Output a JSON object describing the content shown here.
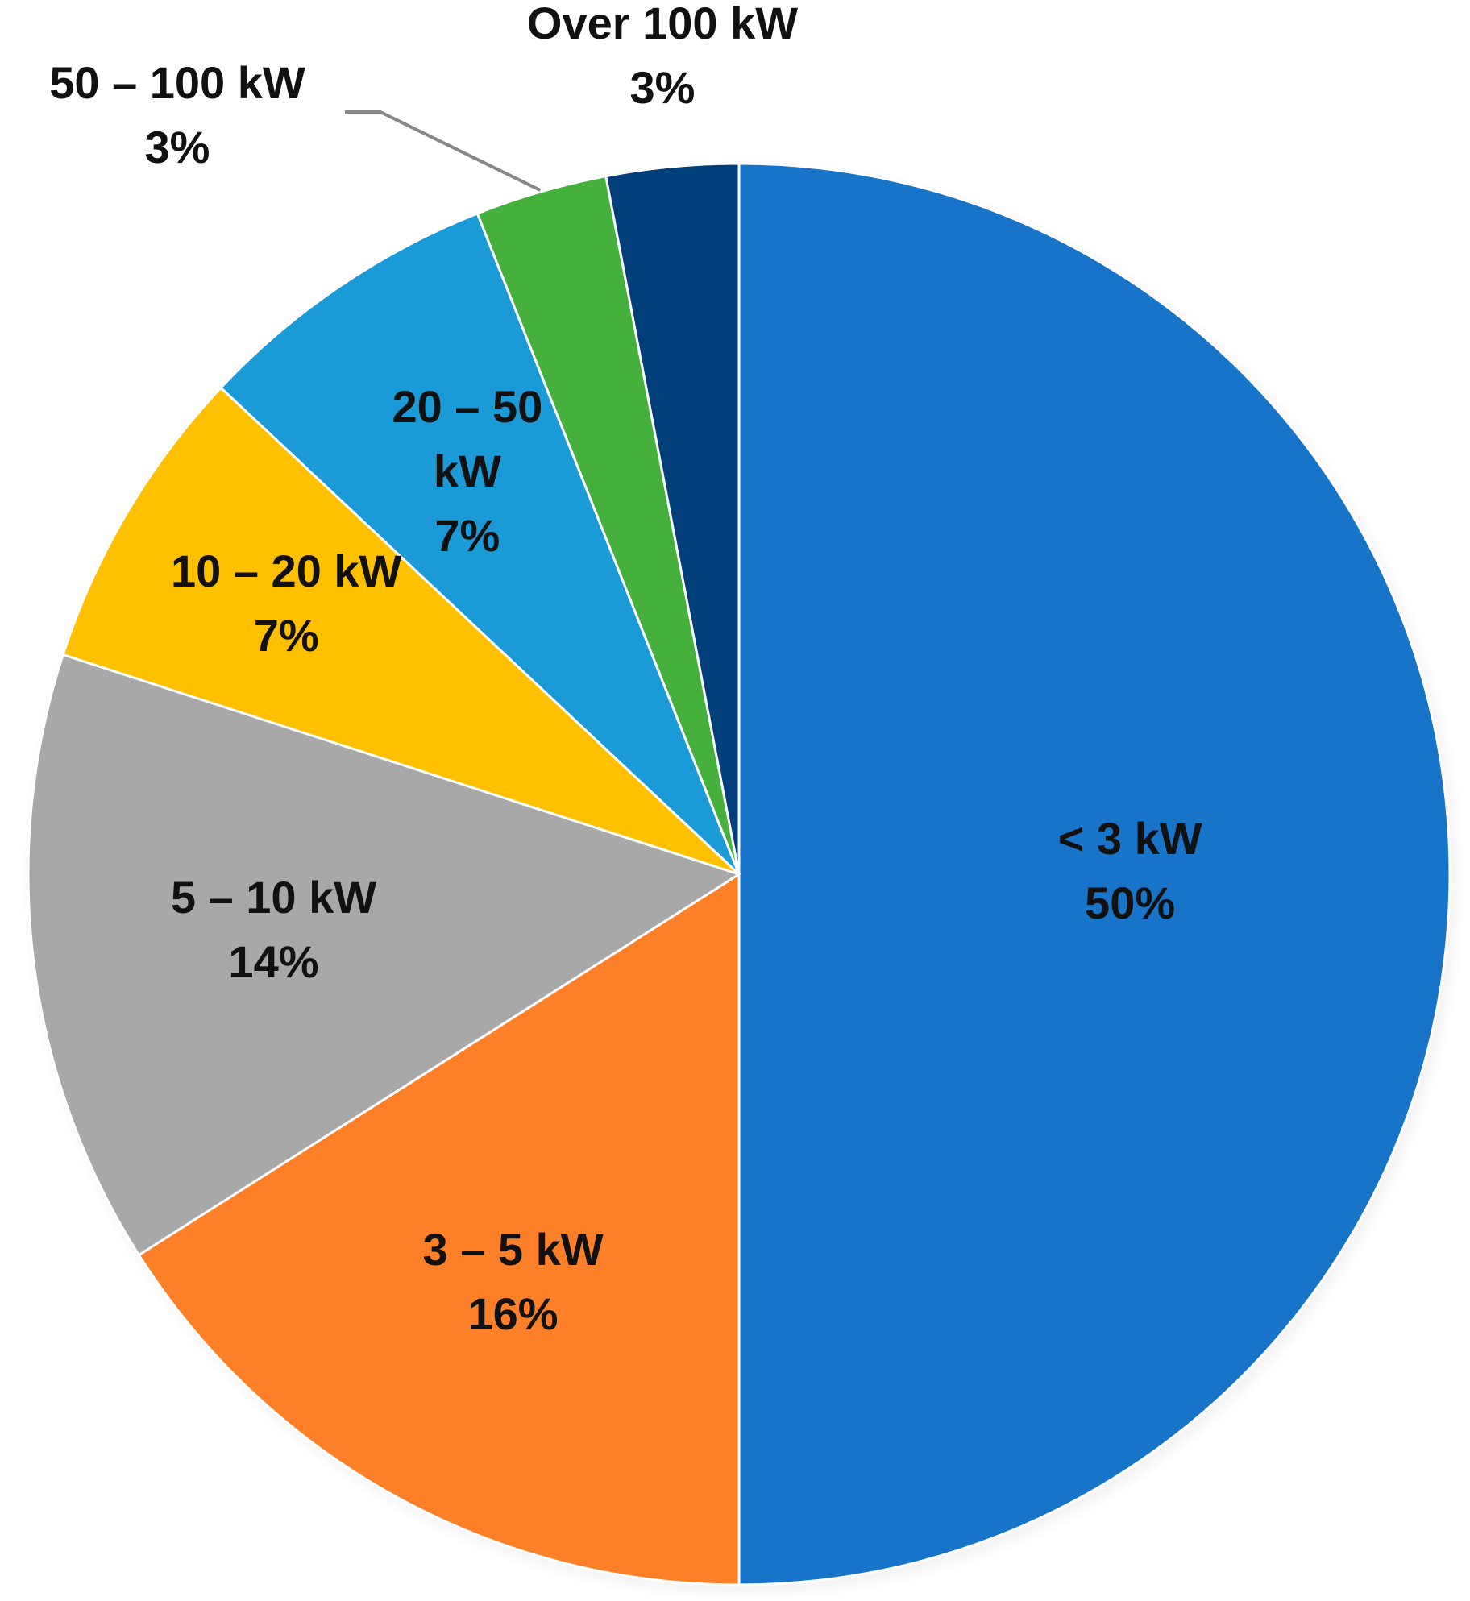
{
  "chart_data": {
    "type": "pie",
    "title": "",
    "start_angle_deg": 0,
    "direction": "clockwise",
    "slices": [
      {
        "label_lines": [
          "< 3 kW"
        ],
        "percent_label": "50%",
        "value": 50,
        "color": "#1874C9"
      },
      {
        "label_lines": [
          "3 – 5 kW"
        ],
        "percent_label": "16%",
        "value": 16,
        "color": "#FD7F28"
      },
      {
        "label_lines": [
          "5 – 10 kW"
        ],
        "percent_label": "14%",
        "value": 14,
        "color": "#A8A8A8"
      },
      {
        "label_lines": [
          "10 – 20 kW"
        ],
        "percent_label": "7%",
        "value": 7,
        "color": "#FFC000"
      },
      {
        "label_lines": [
          "20 – 50",
          "kW"
        ],
        "percent_label": "7%",
        "value": 7,
        "color": "#1A9BD7"
      },
      {
        "label_lines": [
          "50 – 100 kW"
        ],
        "percent_label": "3%",
        "value": 3,
        "color": "#46B03D"
      },
      {
        "label_lines": [
          "Over 100 kW"
        ],
        "percent_label": "3%",
        "value": 3,
        "color": "#003F7A"
      }
    ],
    "leader_line_color": "#888888"
  }
}
